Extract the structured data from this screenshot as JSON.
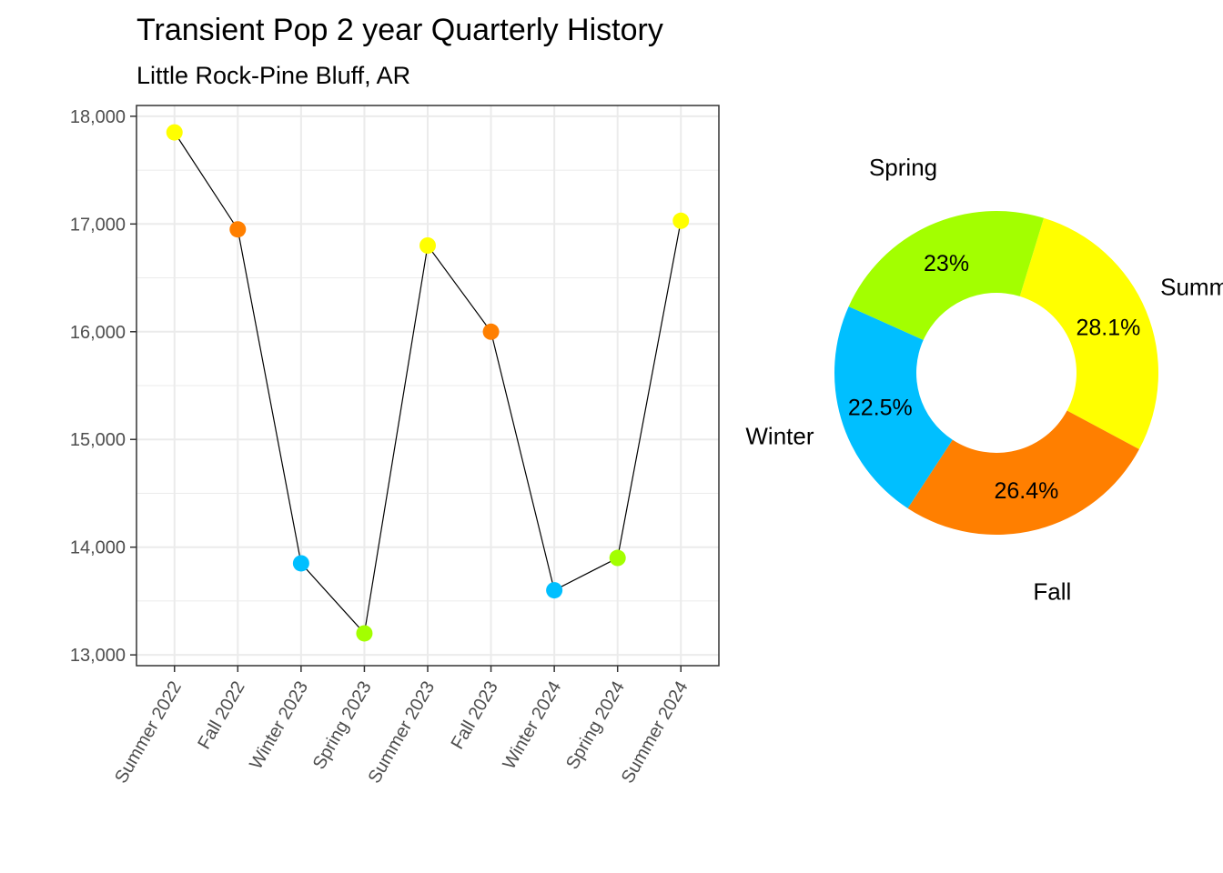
{
  "title": "Transient Pop 2 year Quarterly History",
  "subtitle": "Little Rock-Pine Bluff, AR",
  "season_colors": {
    "Summer": "#ffff00",
    "Fall": "#ff7f00",
    "Winter": "#00bfff",
    "Spring": "#a3ff00"
  },
  "chart_data": [
    {
      "type": "line",
      "categories": [
        "Summer 2022",
        "Fall 2022",
        "Winter 2023",
        "Spring 2023",
        "Summer 2023",
        "Fall 2023",
        "Winter 2024",
        "Spring 2024",
        "Summer 2024"
      ],
      "seasons": [
        "Summer",
        "Fall",
        "Winter",
        "Spring",
        "Summer",
        "Fall",
        "Winter",
        "Spring",
        "Summer"
      ],
      "values": [
        17850,
        16950,
        13850,
        13200,
        16800,
        16000,
        13600,
        13900,
        17030
      ],
      "ylim": [
        12900,
        18100
      ],
      "yticks": [
        13000,
        14000,
        15000,
        16000,
        17000,
        18000
      ],
      "ytick_labels": [
        "13,000",
        "14,000",
        "15,000",
        "16,000",
        "17,000",
        "18,000"
      ],
      "grid": true,
      "legend": "none"
    },
    {
      "type": "pie",
      "style": "donut",
      "labels": [
        "Summer",
        "Fall",
        "Winter",
        "Spring"
      ],
      "values": [
        28.1,
        26.4,
        22.5,
        23.0
      ],
      "value_labels": [
        "28.1%",
        "26.4%",
        "22.5%",
        "23%"
      ]
    }
  ]
}
